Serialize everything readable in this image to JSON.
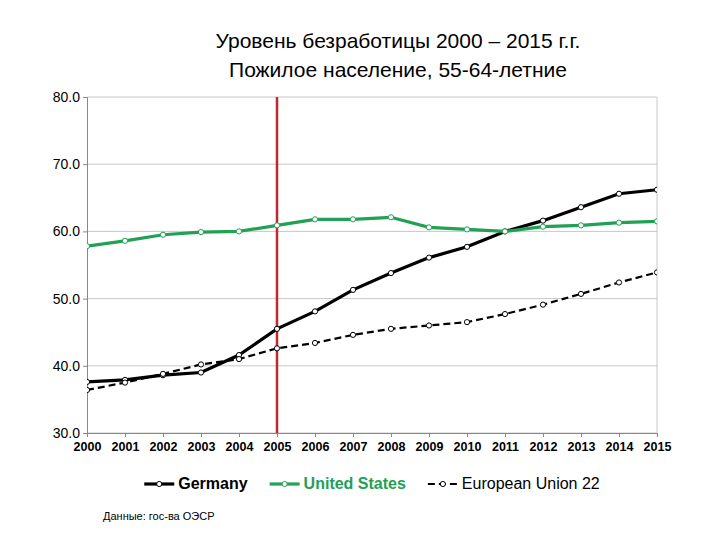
{
  "chart_data": {
    "type": "line",
    "title": "Уровень безработицы 2000 – 2015 г.г.",
    "subtitle": "Пожилое население, 55-64-летние",
    "source": "Данные: гос-ва ОЭСР",
    "x": [
      2000,
      2001,
      2002,
      2003,
      2004,
      2005,
      2006,
      2007,
      2008,
      2009,
      2010,
      2011,
      2012,
      2013,
      2014,
      2015
    ],
    "xlim": [
      2000,
      2015
    ],
    "xticks": [
      2000,
      2001,
      2002,
      2003,
      2004,
      2005,
      2006,
      2007,
      2008,
      2009,
      2010,
      2011,
      2012,
      2013,
      2014,
      2015
    ],
    "ylim": [
      30,
      80
    ],
    "yticks": [
      {
        "value": 30,
        "label": "30.0"
      },
      {
        "value": 40,
        "label": "40.0"
      },
      {
        "value": 50,
        "label": "50.0"
      },
      {
        "value": 60,
        "label": "60.0"
      },
      {
        "value": 70,
        "label": "70.0"
      },
      {
        "value": 80,
        "label": "80.0"
      }
    ],
    "grid": true,
    "legend": "bottom",
    "vertical_line": {
      "x": 2005,
      "color": "#c0282d"
    },
    "series": [
      {
        "name": "Germany",
        "color": "#000000",
        "marker": "circle",
        "line_style": "solid",
        "values": [
          37.6,
          37.9,
          38.6,
          39.0,
          41.6,
          45.5,
          48.1,
          51.3,
          53.8,
          56.1,
          57.7,
          60.0,
          61.6,
          63.6,
          65.6,
          66.2
        ]
      },
      {
        "name": "United States",
        "color": "#22a055",
        "marker": "circle",
        "line_style": "solid",
        "values": [
          57.8,
          58.6,
          59.5,
          59.9,
          60.0,
          60.9,
          61.8,
          61.8,
          62.1,
          60.6,
          60.3,
          60.0,
          60.7,
          60.9,
          61.3,
          61.5
        ]
      },
      {
        "name": "European Union 22",
        "color": "#000000",
        "marker": "circle",
        "line_style": "dashed",
        "values": [
          36.4,
          37.5,
          38.8,
          40.2,
          41.0,
          42.6,
          43.4,
          44.6,
          45.5,
          46.0,
          46.5,
          47.7,
          49.1,
          50.7,
          52.4,
          53.9
        ]
      }
    ]
  }
}
